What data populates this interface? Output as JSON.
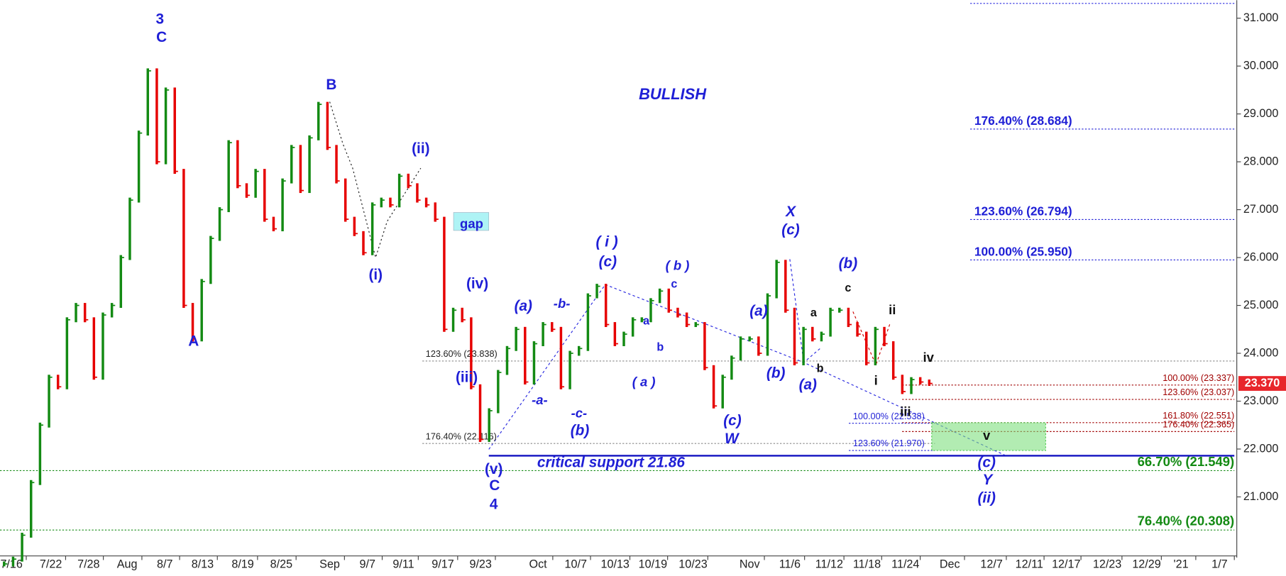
{
  "chart_data": {
    "type": "candlestick",
    "title": "BULLISH",
    "ylim": [
      19.476,
      31.377
    ],
    "yticks": [
      {
        "value": 21,
        "label": "21.000"
      },
      {
        "value": 22,
        "label": "22.000"
      },
      {
        "value": 23,
        "label": "23.000"
      },
      {
        "value": 24,
        "label": "24.000"
      },
      {
        "value": 25,
        "label": "25.000"
      },
      {
        "value": 26,
        "label": "26.000"
      },
      {
        "value": 27,
        "label": "27.000"
      },
      {
        "value": 28,
        "label": "28.000"
      },
      {
        "value": 29,
        "label": "29.000"
      },
      {
        "value": 30,
        "label": "30.000"
      },
      {
        "value": 31,
        "label": "31.000"
      }
    ],
    "xticks": [
      "7/16",
      "7/22",
      "7/28",
      "Aug",
      "8/7",
      "8/13",
      "8/19",
      "8/25",
      "Sep",
      "9/7",
      "9/11",
      "9/17",
      "9/23",
      "Oct",
      "10/7",
      "10/13",
      "10/19",
      "10/23",
      "Nov",
      "11/6",
      "11/12",
      "11/18",
      "11/24",
      "Dec",
      "12/7",
      "12/11",
      "12/17",
      "12/23",
      "12/29",
      "'21",
      "1/7"
    ],
    "up_color": "#138a13",
    "down_color": "#e60000",
    "values": [
      19.6,
      19.7,
      20.2,
      21.3,
      22.5,
      23.5,
      23.3,
      24.7,
      25.0,
      24.7,
      23.5,
      24.8,
      25.0,
      26.0,
      27.2,
      28.6,
      29.9,
      28.0,
      29.5,
      27.8,
      25.0,
      24.3,
      25.5,
      26.4,
      27.0,
      28.4,
      27.5,
      27.3,
      27.8,
      26.8,
      26.6,
      27.6,
      28.3,
      27.4,
      28.5,
      29.2,
      28.3,
      27.6,
      26.8,
      26.5,
      26.1,
      27.1,
      27.2,
      27.1,
      27.7,
      27.5,
      27.2,
      27.1,
      26.8,
      24.5,
      24.9,
      24.7,
      23.3,
      22.2,
      22.8,
      23.6,
      24.1,
      24.5,
      23.4,
      24.2,
      24.6,
      24.5,
      23.3,
      24.0,
      24.1,
      25.2,
      25.4,
      24.6,
      24.2,
      24.4,
      24.7,
      24.7,
      25.1,
      25.3,
      24.9,
      24.8,
      24.6,
      24.6,
      23.7,
      22.9,
      23.5,
      23.9,
      24.3,
      24.3,
      24.0,
      25.2,
      25.9,
      24.9,
      23.8,
      24.5,
      24.3,
      24.4,
      24.9,
      24.9,
      24.6,
      24.4,
      23.8,
      24.5,
      24.2,
      23.5,
      23.2,
      23.45,
      23.4,
      23.37
    ],
    "last_price": {
      "value": 23.37,
      "label": "23.370"
    },
    "critical_support": 21.86,
    "fib_levels": [
      {
        "label": "176.40% (28.684)",
        "value": 28.684
      },
      {
        "label": "123.60% (26.794)",
        "value": 26.794
      },
      {
        "label": "100.00% (25.950)",
        "value": 25.95
      },
      {
        "label": "66.70% (21.549)",
        "value": 21.549
      },
      {
        "label": "76.40% (20.308)",
        "value": 20.308
      },
      {
        "label": "100.00% (23.337)",
        "value": 23.337
      },
      {
        "label": "123.60% (23.037)",
        "value": 23.037
      },
      {
        "label": "161.80% (22.551)",
        "value": 22.551
      },
      {
        "label": "176.40% (22.365)",
        "value": 22.365
      },
      {
        "label": "123.60% (23.838)",
        "value": 23.838
      },
      {
        "label": "176.40% (22.116)",
        "value": 22.116
      },
      {
        "label": "100.00% (22.538)",
        "value": 22.538
      },
      {
        "label": "123.60% (21.970)",
        "value": 21.97
      }
    ],
    "annotations": [
      "3",
      "C",
      "B",
      "A",
      "(ii)",
      "(i)",
      "gap",
      "(iv)",
      "(iii)",
      "(v)",
      "C",
      "4",
      "critical support 21.86",
      "( i )",
      "(c)",
      "(a)",
      "-b-",
      "-a-",
      "-c-",
      "(b)",
      "( b )",
      "c",
      "a",
      "b",
      "( a )",
      "(c)",
      "W",
      "(a)",
      "(b)",
      "X",
      "(c)",
      "(a)",
      "(b)",
      "c",
      "a",
      "b",
      "ii",
      "i",
      "iii",
      "iv",
      "v",
      "(c)",
      "Y",
      "(ii)"
    ]
  }
}
